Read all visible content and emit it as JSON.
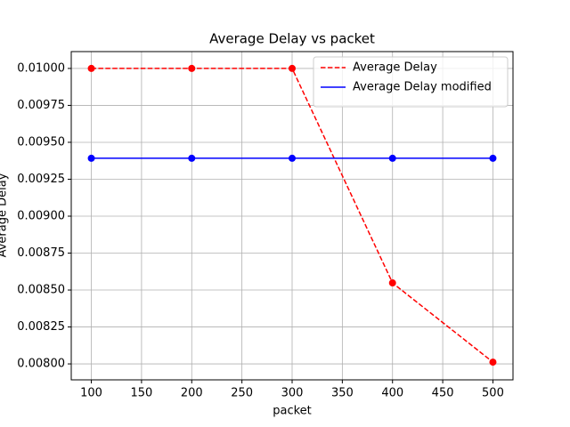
{
  "chart_data": {
    "type": "line",
    "title": "Average Delay vs packet",
    "xlabel": "packet",
    "ylabel": "Average Delay",
    "x": [
      100,
      200,
      300,
      400,
      500
    ],
    "series": [
      {
        "name": "Average Delay",
        "color": "#ff0000",
        "dash": true,
        "values": [
          0.01,
          0.01,
          0.01,
          0.008548,
          0.008012
        ]
      },
      {
        "name": "Average Delay modified",
        "color": "#0000ff",
        "dash": false,
        "values": [
          0.009392,
          0.009392,
          0.009392,
          0.009392,
          0.009392
        ]
      }
    ],
    "xlim": [
      80,
      520
    ],
    "ylim": [
      0.007892,
      0.010114
    ],
    "xticks": [
      100,
      150,
      200,
      250,
      300,
      350,
      400,
      450,
      500
    ],
    "yticks": [
      {
        "value": 0.008,
        "label": "0.00800"
      },
      {
        "value": 0.00825,
        "label": "0.00825"
      },
      {
        "value": 0.0085,
        "label": "0.00850"
      },
      {
        "value": 0.00875,
        "label": "0.00875"
      },
      {
        "value": 0.009,
        "label": "0.00900"
      },
      {
        "value": 0.00925,
        "label": "0.00925"
      },
      {
        "value": 0.0095,
        "label": "0.00950"
      },
      {
        "value": 0.00975,
        "label": "0.00975"
      },
      {
        "value": 0.01,
        "label": "0.01000"
      }
    ],
    "grid": true,
    "legend": "upper right"
  }
}
